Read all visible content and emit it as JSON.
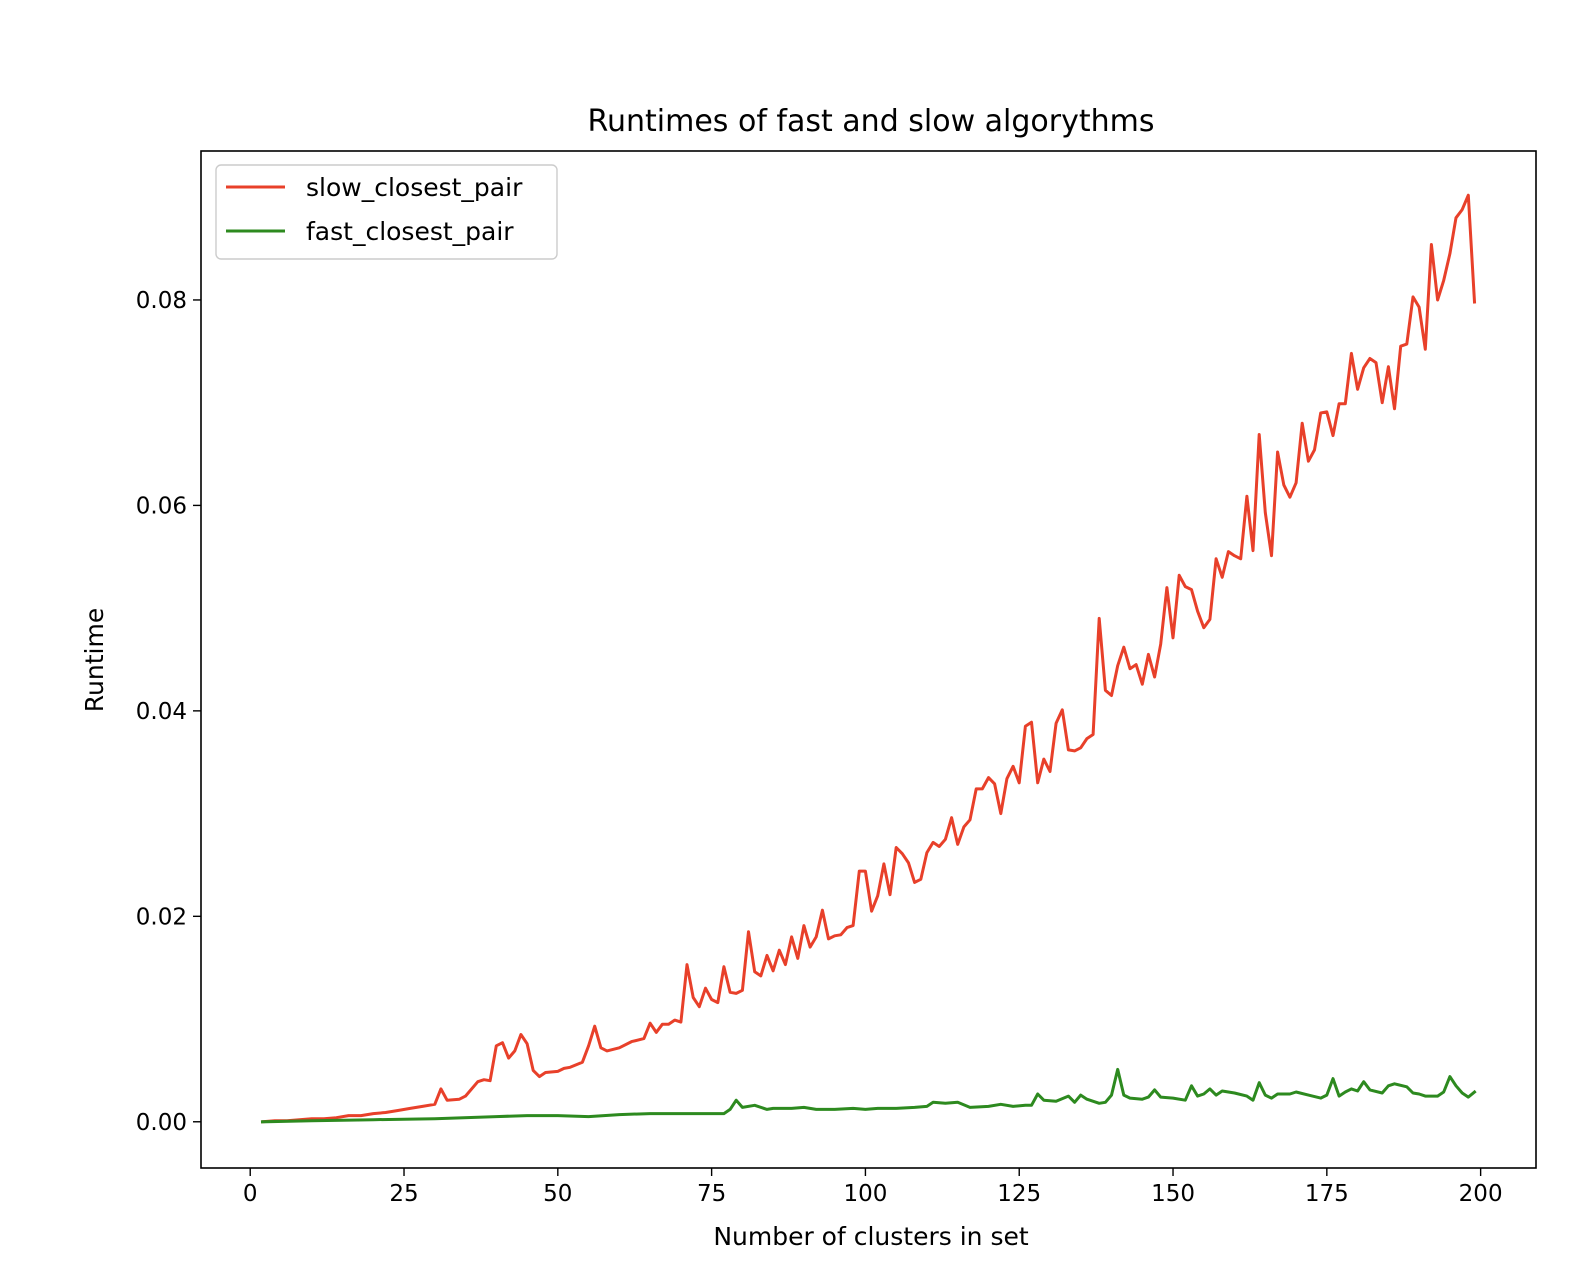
{
  "chart_data": {
    "type": "line",
    "title": "Runtimes of fast and slow algorythms",
    "xlabel": "Number of clusters in set",
    "ylabel": "Runtime",
    "xlim": [
      -8,
      209
    ],
    "ylim": [
      -0.0045,
      0.0945
    ],
    "xticks": [
      0,
      25,
      50,
      75,
      100,
      125,
      150,
      175,
      200
    ],
    "xtick_labels": [
      "0",
      "25",
      "50",
      "75",
      "100",
      "125",
      "150",
      "175",
      "200"
    ],
    "yticks": [
      0.0,
      0.02,
      0.04,
      0.06,
      0.08
    ],
    "ytick_labels": [
      "0.00",
      "0.02",
      "0.04",
      "0.06",
      "0.08"
    ],
    "grid": false,
    "legend": "top-left",
    "series": [
      {
        "name": "slow_closest_pair",
        "color": "#e8402a",
        "points": [
          [
            2,
            0.0
          ],
          [
            4,
            0.0001
          ],
          [
            6,
            0.0001
          ],
          [
            8,
            0.0002
          ],
          [
            10,
            0.0003
          ],
          [
            12,
            0.0003
          ],
          [
            14,
            0.0004
          ],
          [
            16,
            0.0006
          ],
          [
            18,
            0.0006
          ],
          [
            20,
            0.0008
          ],
          [
            22,
            0.0009
          ],
          [
            24,
            0.0011
          ],
          [
            26,
            0.0013
          ],
          [
            28,
            0.0015
          ],
          [
            30,
            0.0017
          ],
          [
            31,
            0.0032
          ],
          [
            32,
            0.0021
          ],
          [
            34,
            0.0022
          ],
          [
            35,
            0.0025
          ],
          [
            37,
            0.0039
          ],
          [
            38,
            0.0041
          ],
          [
            39,
            0.004
          ],
          [
            40,
            0.0074
          ],
          [
            41,
            0.0077
          ],
          [
            42,
            0.0062
          ],
          [
            43,
            0.0069
          ],
          [
            44,
            0.0085
          ],
          [
            45,
            0.0076
          ],
          [
            46,
            0.005
          ],
          [
            47,
            0.0044
          ],
          [
            48,
            0.0048
          ],
          [
            50,
            0.0049
          ],
          [
            51,
            0.0052
          ],
          [
            52,
            0.0053
          ],
          [
            54,
            0.0058
          ],
          [
            55,
            0.0074
          ],
          [
            56,
            0.0093
          ],
          [
            57,
            0.0072
          ],
          [
            58,
            0.0069
          ],
          [
            60,
            0.0072
          ],
          [
            62,
            0.0078
          ],
          [
            64,
            0.0081
          ],
          [
            65,
            0.0096
          ],
          [
            66,
            0.0087
          ],
          [
            67,
            0.0095
          ],
          [
            68,
            0.0095
          ],
          [
            69,
            0.0099
          ],
          [
            70,
            0.0097
          ],
          [
            71,
            0.0153
          ],
          [
            72,
            0.0121
          ],
          [
            73,
            0.0112
          ],
          [
            74,
            0.013
          ],
          [
            75,
            0.0119
          ],
          [
            76,
            0.0116
          ],
          [
            77,
            0.0151
          ],
          [
            78,
            0.0126
          ],
          [
            79,
            0.0125
          ],
          [
            80,
            0.0128
          ],
          [
            81,
            0.0185
          ],
          [
            82,
            0.0146
          ],
          [
            83,
            0.0142
          ],
          [
            84,
            0.0162
          ],
          [
            85,
            0.0147
          ],
          [
            86,
            0.0167
          ],
          [
            87,
            0.0153
          ],
          [
            88,
            0.018
          ],
          [
            89,
            0.0159
          ],
          [
            90,
            0.0191
          ],
          [
            91,
            0.017
          ],
          [
            92,
            0.018
          ],
          [
            93,
            0.0206
          ],
          [
            94,
            0.0178
          ],
          [
            95,
            0.0181
          ],
          [
            96,
            0.0182
          ],
          [
            97,
            0.0189
          ],
          [
            98,
            0.0191
          ],
          [
            99,
            0.0244
          ],
          [
            100,
            0.0244
          ],
          [
            101,
            0.0205
          ],
          [
            102,
            0.022
          ],
          [
            103,
            0.0251
          ],
          [
            104,
            0.0221
          ],
          [
            105,
            0.0267
          ],
          [
            106,
            0.0261
          ],
          [
            107,
            0.0252
          ],
          [
            108,
            0.0233
          ],
          [
            109,
            0.0236
          ],
          [
            110,
            0.0262
          ],
          [
            111,
            0.0272
          ],
          [
            112,
            0.0268
          ],
          [
            113,
            0.0275
          ],
          [
            114,
            0.0296
          ],
          [
            115,
            0.027
          ],
          [
            116,
            0.0287
          ],
          [
            117,
            0.0294
          ],
          [
            118,
            0.0324
          ],
          [
            119,
            0.0324
          ],
          [
            120,
            0.0335
          ],
          [
            121,
            0.0329
          ],
          [
            122,
            0.03
          ],
          [
            123,
            0.0334
          ],
          [
            124,
            0.0346
          ],
          [
            125,
            0.033
          ],
          [
            126,
            0.0385
          ],
          [
            127,
            0.0389
          ],
          [
            128,
            0.033
          ],
          [
            129,
            0.0353
          ],
          [
            130,
            0.0341
          ],
          [
            131,
            0.0388
          ],
          [
            132,
            0.0401
          ],
          [
            133,
            0.0362
          ],
          [
            134,
            0.0361
          ],
          [
            135,
            0.0364
          ],
          [
            136,
            0.0373
          ],
          [
            137,
            0.0377
          ],
          [
            138,
            0.049
          ],
          [
            139,
            0.042
          ],
          [
            140,
            0.0415
          ],
          [
            141,
            0.0444
          ],
          [
            142,
            0.0462
          ],
          [
            143,
            0.0441
          ],
          [
            144,
            0.0445
          ],
          [
            145,
            0.0426
          ],
          [
            146,
            0.0455
          ],
          [
            147,
            0.0433
          ],
          [
            148,
            0.0465
          ],
          [
            149,
            0.052
          ],
          [
            150,
            0.0471
          ],
          [
            151,
            0.0532
          ],
          [
            152,
            0.0521
          ],
          [
            153,
            0.0518
          ],
          [
            154,
            0.0497
          ],
          [
            155,
            0.0481
          ],
          [
            156,
            0.0489
          ],
          [
            157,
            0.0548
          ],
          [
            158,
            0.053
          ],
          [
            159,
            0.0555
          ],
          [
            160,
            0.0551
          ],
          [
            161,
            0.0548
          ],
          [
            162,
            0.0609
          ],
          [
            163,
            0.0556
          ],
          [
            164,
            0.0669
          ],
          [
            165,
            0.0593
          ],
          [
            166,
            0.0551
          ],
          [
            167,
            0.0652
          ],
          [
            168,
            0.062
          ],
          [
            169,
            0.0608
          ],
          [
            170,
            0.0622
          ],
          [
            171,
            0.068
          ],
          [
            172,
            0.0643
          ],
          [
            173,
            0.0654
          ],
          [
            174,
            0.069
          ],
          [
            175,
            0.0691
          ],
          [
            176,
            0.0668
          ],
          [
            177,
            0.0699
          ],
          [
            178,
            0.0699
          ],
          [
            179,
            0.0748
          ],
          [
            180,
            0.0713
          ],
          [
            181,
            0.0734
          ],
          [
            182,
            0.0743
          ],
          [
            183,
            0.0739
          ],
          [
            184,
            0.07
          ],
          [
            185,
            0.0735
          ],
          [
            186,
            0.0694
          ],
          [
            187,
            0.0755
          ],
          [
            188,
            0.0757
          ],
          [
            189,
            0.0803
          ],
          [
            190,
            0.0793
          ],
          [
            191,
            0.0752
          ],
          [
            192,
            0.0854
          ],
          [
            193,
            0.08
          ],
          [
            194,
            0.0819
          ],
          [
            195,
            0.0845
          ],
          [
            196,
            0.088
          ],
          [
            197,
            0.0888
          ],
          [
            198,
            0.0902
          ],
          [
            199,
            0.0798
          ]
        ]
      },
      {
        "name": "fast_closest_pair",
        "color": "#2d8a1f",
        "points": [
          [
            2,
            0.0
          ],
          [
            10,
            0.0001
          ],
          [
            20,
            0.0002
          ],
          [
            30,
            0.0003
          ],
          [
            40,
            0.0005
          ],
          [
            45,
            0.0006
          ],
          [
            50,
            0.0006
          ],
          [
            55,
            0.0005
          ],
          [
            60,
            0.0007
          ],
          [
            65,
            0.0008
          ],
          [
            70,
            0.0008
          ],
          [
            75,
            0.0008
          ],
          [
            77,
            0.0008
          ],
          [
            78,
            0.0012
          ],
          [
            79,
            0.0021
          ],
          [
            80,
            0.0014
          ],
          [
            82,
            0.0016
          ],
          [
            84,
            0.0012
          ],
          [
            85,
            0.0013
          ],
          [
            88,
            0.0013
          ],
          [
            90,
            0.0014
          ],
          [
            92,
            0.0012
          ],
          [
            95,
            0.0012
          ],
          [
            98,
            0.0013
          ],
          [
            100,
            0.0012
          ],
          [
            102,
            0.0013
          ],
          [
            105,
            0.0013
          ],
          [
            108,
            0.0014
          ],
          [
            110,
            0.0015
          ],
          [
            111,
            0.0019
          ],
          [
            113,
            0.0018
          ],
          [
            115,
            0.0019
          ],
          [
            117,
            0.0014
          ],
          [
            120,
            0.0015
          ],
          [
            122,
            0.0017
          ],
          [
            124,
            0.0015
          ],
          [
            126,
            0.0016
          ],
          [
            127,
            0.0016
          ],
          [
            128,
            0.0027
          ],
          [
            129,
            0.0021
          ],
          [
            131,
            0.002
          ],
          [
            133,
            0.0025
          ],
          [
            134,
            0.0019
          ],
          [
            135,
            0.0026
          ],
          [
            136,
            0.0022
          ],
          [
            138,
            0.0018
          ],
          [
            139,
            0.0019
          ],
          [
            140,
            0.0026
          ],
          [
            141,
            0.0051
          ],
          [
            142,
            0.0026
          ],
          [
            143,
            0.0023
          ],
          [
            145,
            0.0022
          ],
          [
            146,
            0.0024
          ],
          [
            147,
            0.0031
          ],
          [
            148,
            0.0024
          ],
          [
            150,
            0.0023
          ],
          [
            152,
            0.0021
          ],
          [
            153,
            0.0035
          ],
          [
            154,
            0.0025
          ],
          [
            155,
            0.0027
          ],
          [
            156,
            0.0032
          ],
          [
            157,
            0.0026
          ],
          [
            158,
            0.003
          ],
          [
            160,
            0.0028
          ],
          [
            162,
            0.0025
          ],
          [
            163,
            0.0021
          ],
          [
            164,
            0.0038
          ],
          [
            165,
            0.0026
          ],
          [
            166,
            0.0023
          ],
          [
            167,
            0.0027
          ],
          [
            169,
            0.0027
          ],
          [
            170,
            0.0029
          ],
          [
            172,
            0.0026
          ],
          [
            174,
            0.0023
          ],
          [
            175,
            0.0026
          ],
          [
            176,
            0.0042
          ],
          [
            177,
            0.0025
          ],
          [
            178,
            0.0029
          ],
          [
            179,
            0.0032
          ],
          [
            180,
            0.003
          ],
          [
            181,
            0.0039
          ],
          [
            182,
            0.0031
          ],
          [
            184,
            0.0028
          ],
          [
            185,
            0.0035
          ],
          [
            186,
            0.0037
          ],
          [
            188,
            0.0034
          ],
          [
            189,
            0.0028
          ],
          [
            190,
            0.0027
          ],
          [
            191,
            0.0025
          ],
          [
            193,
            0.0025
          ],
          [
            194,
            0.0029
          ],
          [
            195,
            0.0044
          ],
          [
            196,
            0.0035
          ],
          [
            197,
            0.0028
          ],
          [
            198,
            0.0024
          ],
          [
            199,
            0.0029
          ]
        ]
      }
    ]
  }
}
